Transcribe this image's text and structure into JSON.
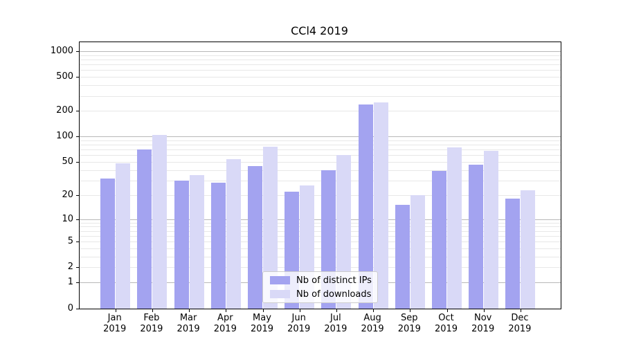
{
  "title": "CCl4 2019",
  "chart_data": {
    "type": "bar",
    "title": "CCl4 2019",
    "categories": [
      "Jan",
      "Feb",
      "Mar",
      "Apr",
      "May",
      "Jun",
      "Jul",
      "Aug",
      "Sep",
      "Oct",
      "Nov",
      "Dec"
    ],
    "category_year": "2019",
    "series": [
      {
        "name": "Nb of distinct IPs",
        "color": "#a3a3f0",
        "values": [
          32,
          70,
          30,
          28,
          45,
          22,
          40,
          240,
          15,
          39,
          46,
          18
        ]
      },
      {
        "name": "Nb of downloads",
        "color": "#d9d9f7",
        "values": [
          48,
          105,
          35,
          54,
          76,
          26,
          61,
          250,
          20,
          74,
          68,
          23
        ]
      }
    ],
    "xlabel": "",
    "ylabel": "",
    "yscale": "symlog-log1p",
    "y_ticks": [
      0,
      1,
      2,
      5,
      10,
      20,
      50,
      100,
      200,
      500,
      1000
    ],
    "y_minor_gridlines": [
      2,
      3,
      4,
      5,
      6,
      7,
      8,
      9,
      20,
      30,
      40,
      50,
      60,
      70,
      80,
      90,
      200,
      300,
      400,
      500,
      600,
      700,
      800,
      900
    ],
    "y_major_gridlines": [
      1,
      10,
      100,
      1000
    ],
    "ylim": [
      0,
      1300
    ],
    "grid": "horizontal",
    "legend_position": "lower center"
  },
  "colors": {
    "bar_dark": "#a3a3f0",
    "bar_light": "#d9d9f7",
    "grid_major": "#b8b8b8",
    "grid_minor": "#e7e7e7",
    "spine": "#000000",
    "legend_border": "#cccccc",
    "background": "#ffffff"
  }
}
